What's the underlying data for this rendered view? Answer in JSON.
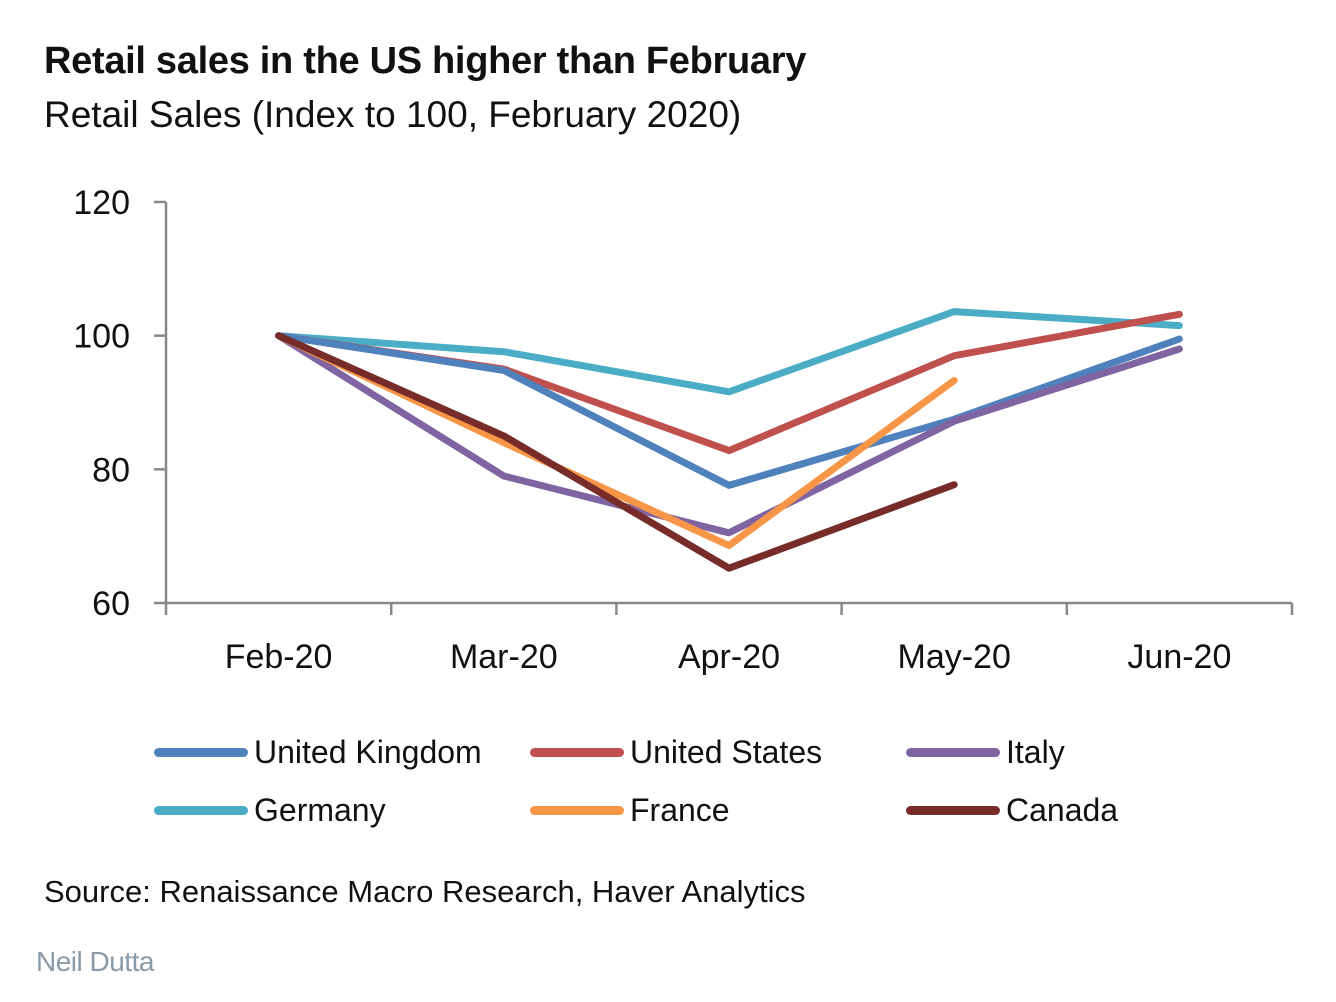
{
  "chart_data": {
    "type": "line",
    "title": "Retail sales in the US higher than February",
    "subtitle": "Retail Sales (Index to 100, February 2020)",
    "xlabel": "",
    "ylabel": "",
    "categories": [
      "Feb-20",
      "Mar-20",
      "Apr-20",
      "May-20",
      "Jun-20"
    ],
    "ylim": [
      60,
      120
    ],
    "yticks": [
      "60",
      "80",
      "100",
      "120"
    ],
    "grid": false,
    "legend_position": "bottom",
    "series": [
      {
        "name": "United Kingdom",
        "color": "#4f81bd",
        "values": [
          100,
          94.8,
          77.6,
          87.5,
          99.5
        ]
      },
      {
        "name": "United States",
        "color": "#c0504d",
        "values": [
          100,
          95.0,
          82.8,
          97.0,
          103.2
        ]
      },
      {
        "name": "Italy",
        "color": "#8064a2",
        "values": [
          100,
          79.0,
          70.5,
          87.2,
          98.0
        ]
      },
      {
        "name": "Germany",
        "color": "#4bacc6",
        "values": [
          100,
          97.6,
          91.6,
          103.6,
          101.5
        ]
      },
      {
        "name": "France",
        "color": "#f79646",
        "values": [
          100,
          84.0,
          68.6,
          93.3,
          null
        ]
      },
      {
        "name": "Canada",
        "color": "#772c2a",
        "values": [
          100,
          85.0,
          65.2,
          77.7,
          null
        ]
      }
    ]
  },
  "source": "Source: Renaissance Macro Research, Haver Analytics",
  "author": "Neil Dutta"
}
